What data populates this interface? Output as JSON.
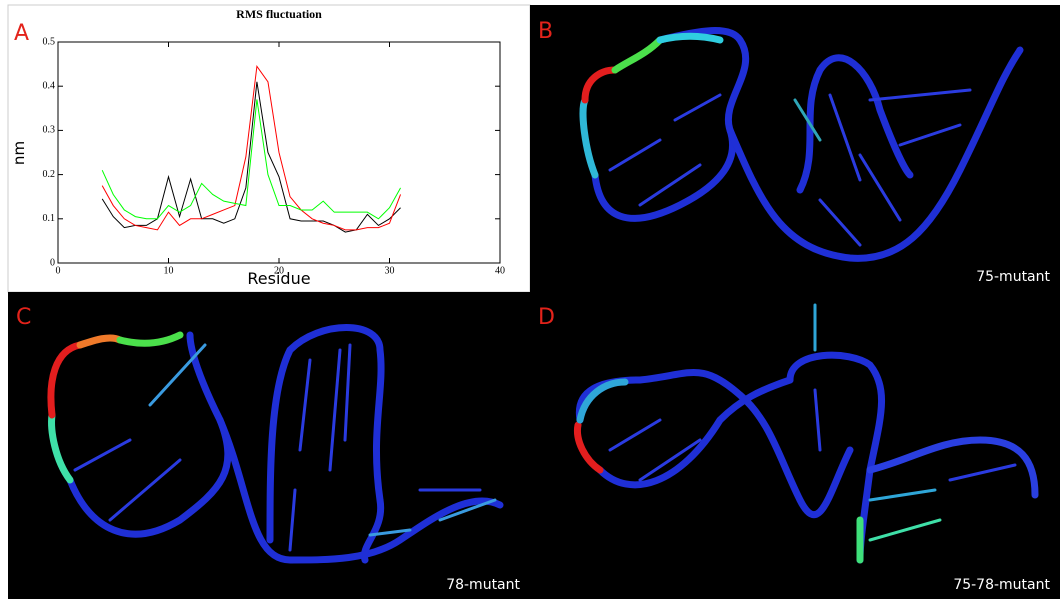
{
  "panels": [
    {
      "label": "A"
    },
    {
      "label": "B",
      "caption": "75-mutant"
    },
    {
      "label": "C",
      "caption": "78-mutant"
    },
    {
      "label": "D",
      "caption": "75-78-mutant"
    }
  ],
  "chart_data": {
    "type": "line",
    "title": "RMS fluctuation",
    "x_label": "Residue",
    "y_label": "nm",
    "x": [
      4,
      5,
      6,
      7,
      8,
      9,
      10,
      11,
      12,
      13,
      14,
      15,
      16,
      17,
      18,
      19,
      20,
      21,
      22,
      23,
      24,
      25,
      26,
      27,
      28,
      29,
      30,
      31
    ],
    "series": [
      {
        "color": "#000000",
        "values": [
          0.145,
          0.105,
          0.08,
          0.085,
          0.085,
          0.1,
          0.195,
          0.105,
          0.19,
          0.1,
          0.1,
          0.09,
          0.1,
          0.17,
          0.41,
          0.25,
          0.195,
          0.1,
          0.095,
          0.095,
          0.095,
          0.085,
          0.07,
          0.075,
          0.11,
          0.085,
          0.1,
          0.125
        ]
      },
      {
        "color": "#ff0000",
        "values": [
          0.175,
          0.13,
          0.1,
          0.085,
          0.08,
          0.075,
          0.115,
          0.085,
          0.1,
          0.1,
          0.11,
          0.12,
          0.13,
          0.24,
          0.445,
          0.41,
          0.25,
          0.15,
          0.12,
          0.1,
          0.09,
          0.085,
          0.075,
          0.075,
          0.08,
          0.08,
          0.09,
          0.155
        ]
      },
      {
        "color": "#00ff00",
        "values": [
          0.21,
          0.155,
          0.12,
          0.105,
          0.1,
          0.1,
          0.13,
          0.115,
          0.13,
          0.18,
          0.155,
          0.14,
          0.135,
          0.13,
          0.37,
          0.2,
          0.13,
          0.13,
          0.12,
          0.12,
          0.14,
          0.115,
          0.115,
          0.115,
          0.115,
          0.1,
          0.125,
          0.17
        ]
      }
    ],
    "xlim": [
      0,
      40
    ],
    "ylim": [
      0,
      0.5
    ],
    "xticks": [
      0,
      10,
      20,
      30,
      40
    ],
    "yticks": [
      0,
      0.1,
      0.2,
      0.3,
      0.4,
      0.5
    ]
  }
}
